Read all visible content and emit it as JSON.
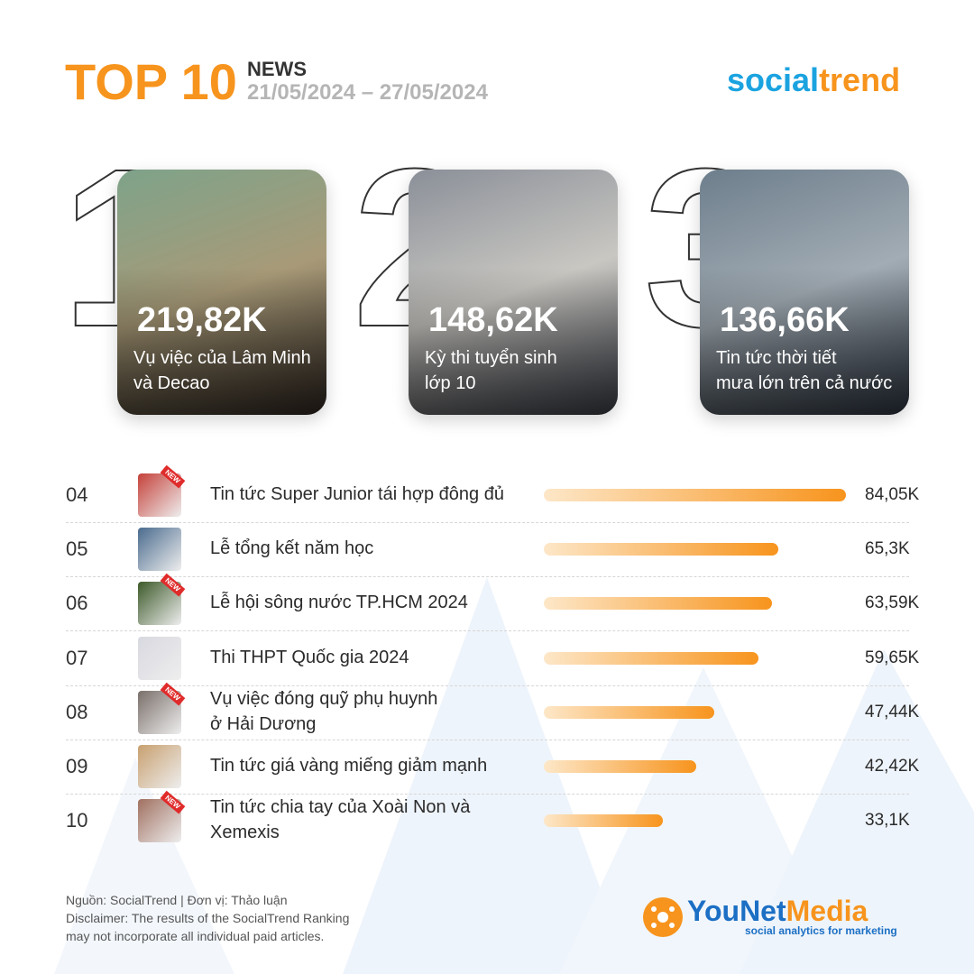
{
  "header": {
    "title": "TOP 10",
    "subtitle": "NEWS",
    "date_range": "21/05/2024 – 27/05/2024",
    "brand_left": "social",
    "brand_right": "trend"
  },
  "top3": [
    {
      "rank": "1",
      "value_label": "219,82K",
      "lines": [
        "Vụ việc của Lâm Minh",
        "và Decao"
      ]
    },
    {
      "rank": "2",
      "value_label": "148,62K",
      "lines": [
        "Kỳ thi tuyển sinh",
        "lớp 10"
      ]
    },
    {
      "rank": "3",
      "value_label": "136,66K",
      "lines": [
        "Tin tức thời tiết",
        "mưa lớn trên cả nước"
      ]
    }
  ],
  "chart_data": {
    "type": "bar",
    "ranks": [
      "04",
      "05",
      "06",
      "07",
      "08",
      "09",
      "10"
    ],
    "categories": [
      [
        "Tin tức Super Junior tái hợp đông đủ"
      ],
      [
        "Lễ tổng kết năm học"
      ],
      [
        "Lễ hội sông nước TP.HCM 2024"
      ],
      [
        "Thi THPT Quốc gia 2024"
      ],
      [
        "Vụ việc đóng quỹ phụ huynh",
        "ở Hải Dương"
      ],
      [
        "Tin tức giá vàng miếng giảm mạnh"
      ],
      [
        "Tin tức chia tay của Xoài Non và",
        "Xemexis"
      ]
    ],
    "badges": [
      "NEW",
      null,
      "NEW",
      null,
      "NEW",
      null,
      "NEW"
    ],
    "values": [
      84.05,
      65.3,
      63.59,
      59.65,
      47.44,
      42.42,
      33.1
    ],
    "value_labels": [
      "84,05K",
      "65,3K",
      "63,59K",
      "59,65K",
      "47,44K",
      "42,42K",
      "33,1K"
    ],
    "color": "#f7941d"
  },
  "footer": {
    "source": "Nguồn: SocialTrend |  Đơn vị: Thảo luận",
    "disclaimer": [
      "Disclaimer: The results of the SocialTrend Ranking",
      "may not incorporate all individual paid articles."
    ],
    "logo_left": "YouNet",
    "logo_right": "Media",
    "tagline": "social analytics for marketing"
  }
}
